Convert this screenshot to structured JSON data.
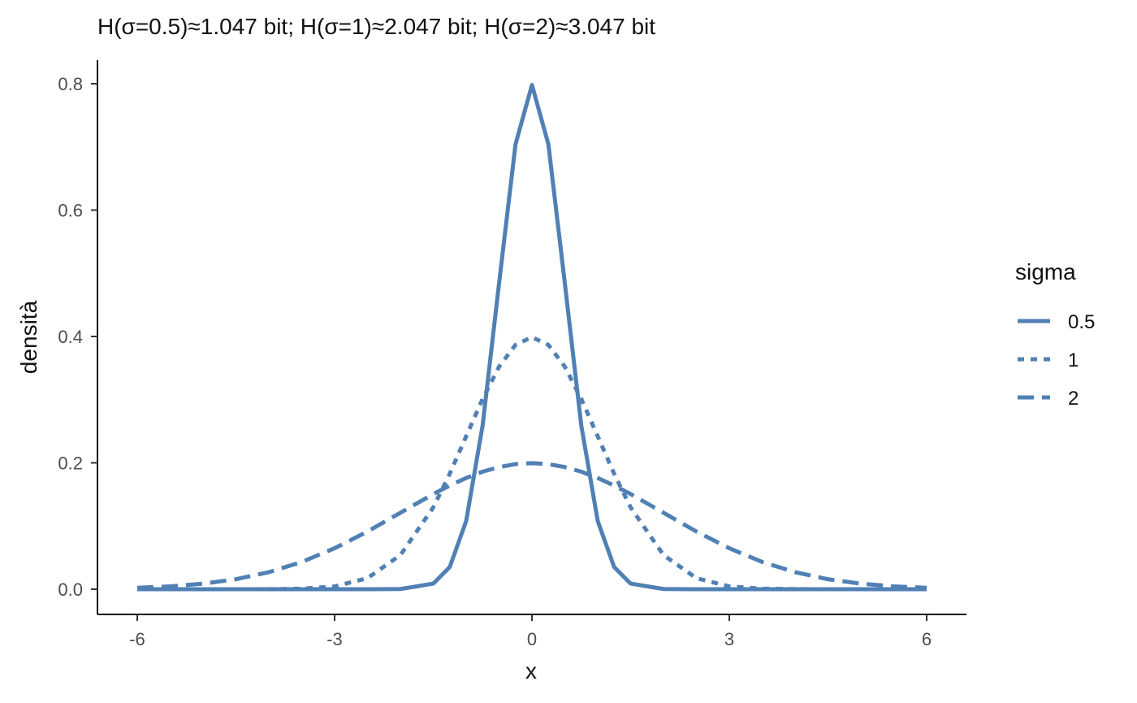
{
  "chart_data": {
    "type": "line",
    "title": "H(σ=0.5)≈1.047 bit; H(σ=1)≈2.047 bit; H(σ=2)≈3.047 bit",
    "xlabel": "x",
    "ylabel": "densità",
    "xlim": [
      -6,
      6
    ],
    "ylim": [
      0,
      0.8
    ],
    "x_ticks": [
      -6,
      -3,
      0,
      3,
      6
    ],
    "x_tick_labels": [
      "-6",
      "-3",
      "0",
      "3",
      "6"
    ],
    "y_ticks": [
      0,
      0.2,
      0.4,
      0.6,
      0.8
    ],
    "y_tick_labels": [
      "0.0",
      "0.2",
      "0.4",
      "0.6",
      "0.8"
    ],
    "grid": false,
    "legend": {
      "title": "sigma",
      "placement": "right"
    },
    "line_color": "#5080b4",
    "x": [
      -6,
      -5.5,
      -5,
      -4.5,
      -4,
      -3.5,
      -3,
      -2.5,
      -2,
      -1.5,
      -1.25,
      -1,
      -0.75,
      -0.5,
      -0.25,
      0,
      0.25,
      0.5,
      0.75,
      1,
      1.25,
      1.5,
      2,
      2.5,
      3,
      3.5,
      4,
      4.5,
      5,
      5.5,
      6
    ],
    "series": [
      {
        "name": "0.5",
        "dash": "solid",
        "values": [
          0,
          0,
          0,
          0,
          0,
          0,
          0,
          0,
          0.0003,
          0.0089,
          0.035,
          0.108,
          0.259,
          0.484,
          0.704,
          0.798,
          0.704,
          0.484,
          0.259,
          0.108,
          0.035,
          0.0089,
          0.0003,
          0,
          0,
          0,
          0,
          0,
          0,
          0,
          0
        ]
      },
      {
        "name": "1",
        "dash": "dotted",
        "values": [
          0,
          0,
          1.5e-06,
          1.6e-05,
          0.000134,
          0.000873,
          0.00443,
          0.0175,
          0.054,
          0.1295,
          0.1826,
          0.242,
          0.3011,
          0.3521,
          0.3867,
          0.3989,
          0.3867,
          0.3521,
          0.3011,
          0.242,
          0.1826,
          0.1295,
          0.054,
          0.0175,
          0.00443,
          0.000873,
          0.000134,
          1.6e-05,
          1.5e-06,
          0,
          0
        ]
      },
      {
        "name": "2",
        "dash": "dashed",
        "values": [
          0.00222,
          0.00454,
          0.00876,
          0.0158,
          0.027,
          0.0431,
          0.0648,
          0.0913,
          0.121,
          0.1506,
          0.164,
          0.176,
          0.186,
          0.1933,
          0.198,
          0.1995,
          0.198,
          0.1933,
          0.186,
          0.176,
          0.164,
          0.1506,
          0.121,
          0.0913,
          0.0648,
          0.0431,
          0.027,
          0.0158,
          0.00876,
          0.00454,
          0.00222
        ]
      }
    ]
  }
}
